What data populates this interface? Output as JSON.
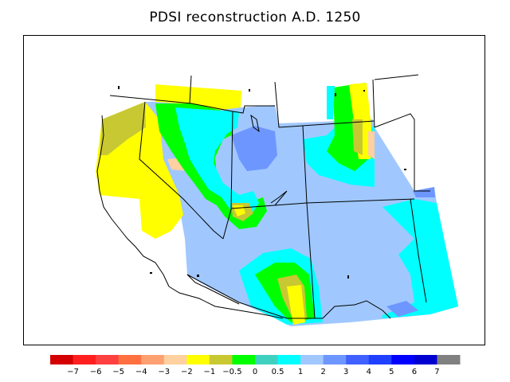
{
  "title": "PDSI reconstruction A.D. 1250",
  "legend": {
    "bins": [
      {
        "color": "#d40000"
      },
      {
        "color": "#ff1f1f"
      },
      {
        "color": "#ff4040"
      },
      {
        "color": "#ff7040"
      },
      {
        "color": "#ffa070"
      },
      {
        "color": "#ffd0a0"
      },
      {
        "color": "#ffff00"
      },
      {
        "color": "#c8c832"
      },
      {
        "color": "#00ff00"
      },
      {
        "color": "#40d0c0"
      },
      {
        "color": "#00ffff"
      },
      {
        "color": "#a0c8ff"
      },
      {
        "color": "#6e96ff"
      },
      {
        "color": "#4060ff"
      },
      {
        "color": "#2040ff"
      },
      {
        "color": "#0000ff"
      },
      {
        "color": "#0000d0"
      },
      {
        "color": "#808080"
      }
    ],
    "tick_labels": [
      "−7",
      "−6",
      "−5",
      "−4",
      "−3",
      "−2",
      "−1",
      "−0.5",
      "0",
      "0.5",
      "1",
      "2",
      "3",
      "4",
      "5",
      "6",
      "7"
    ]
  }
}
